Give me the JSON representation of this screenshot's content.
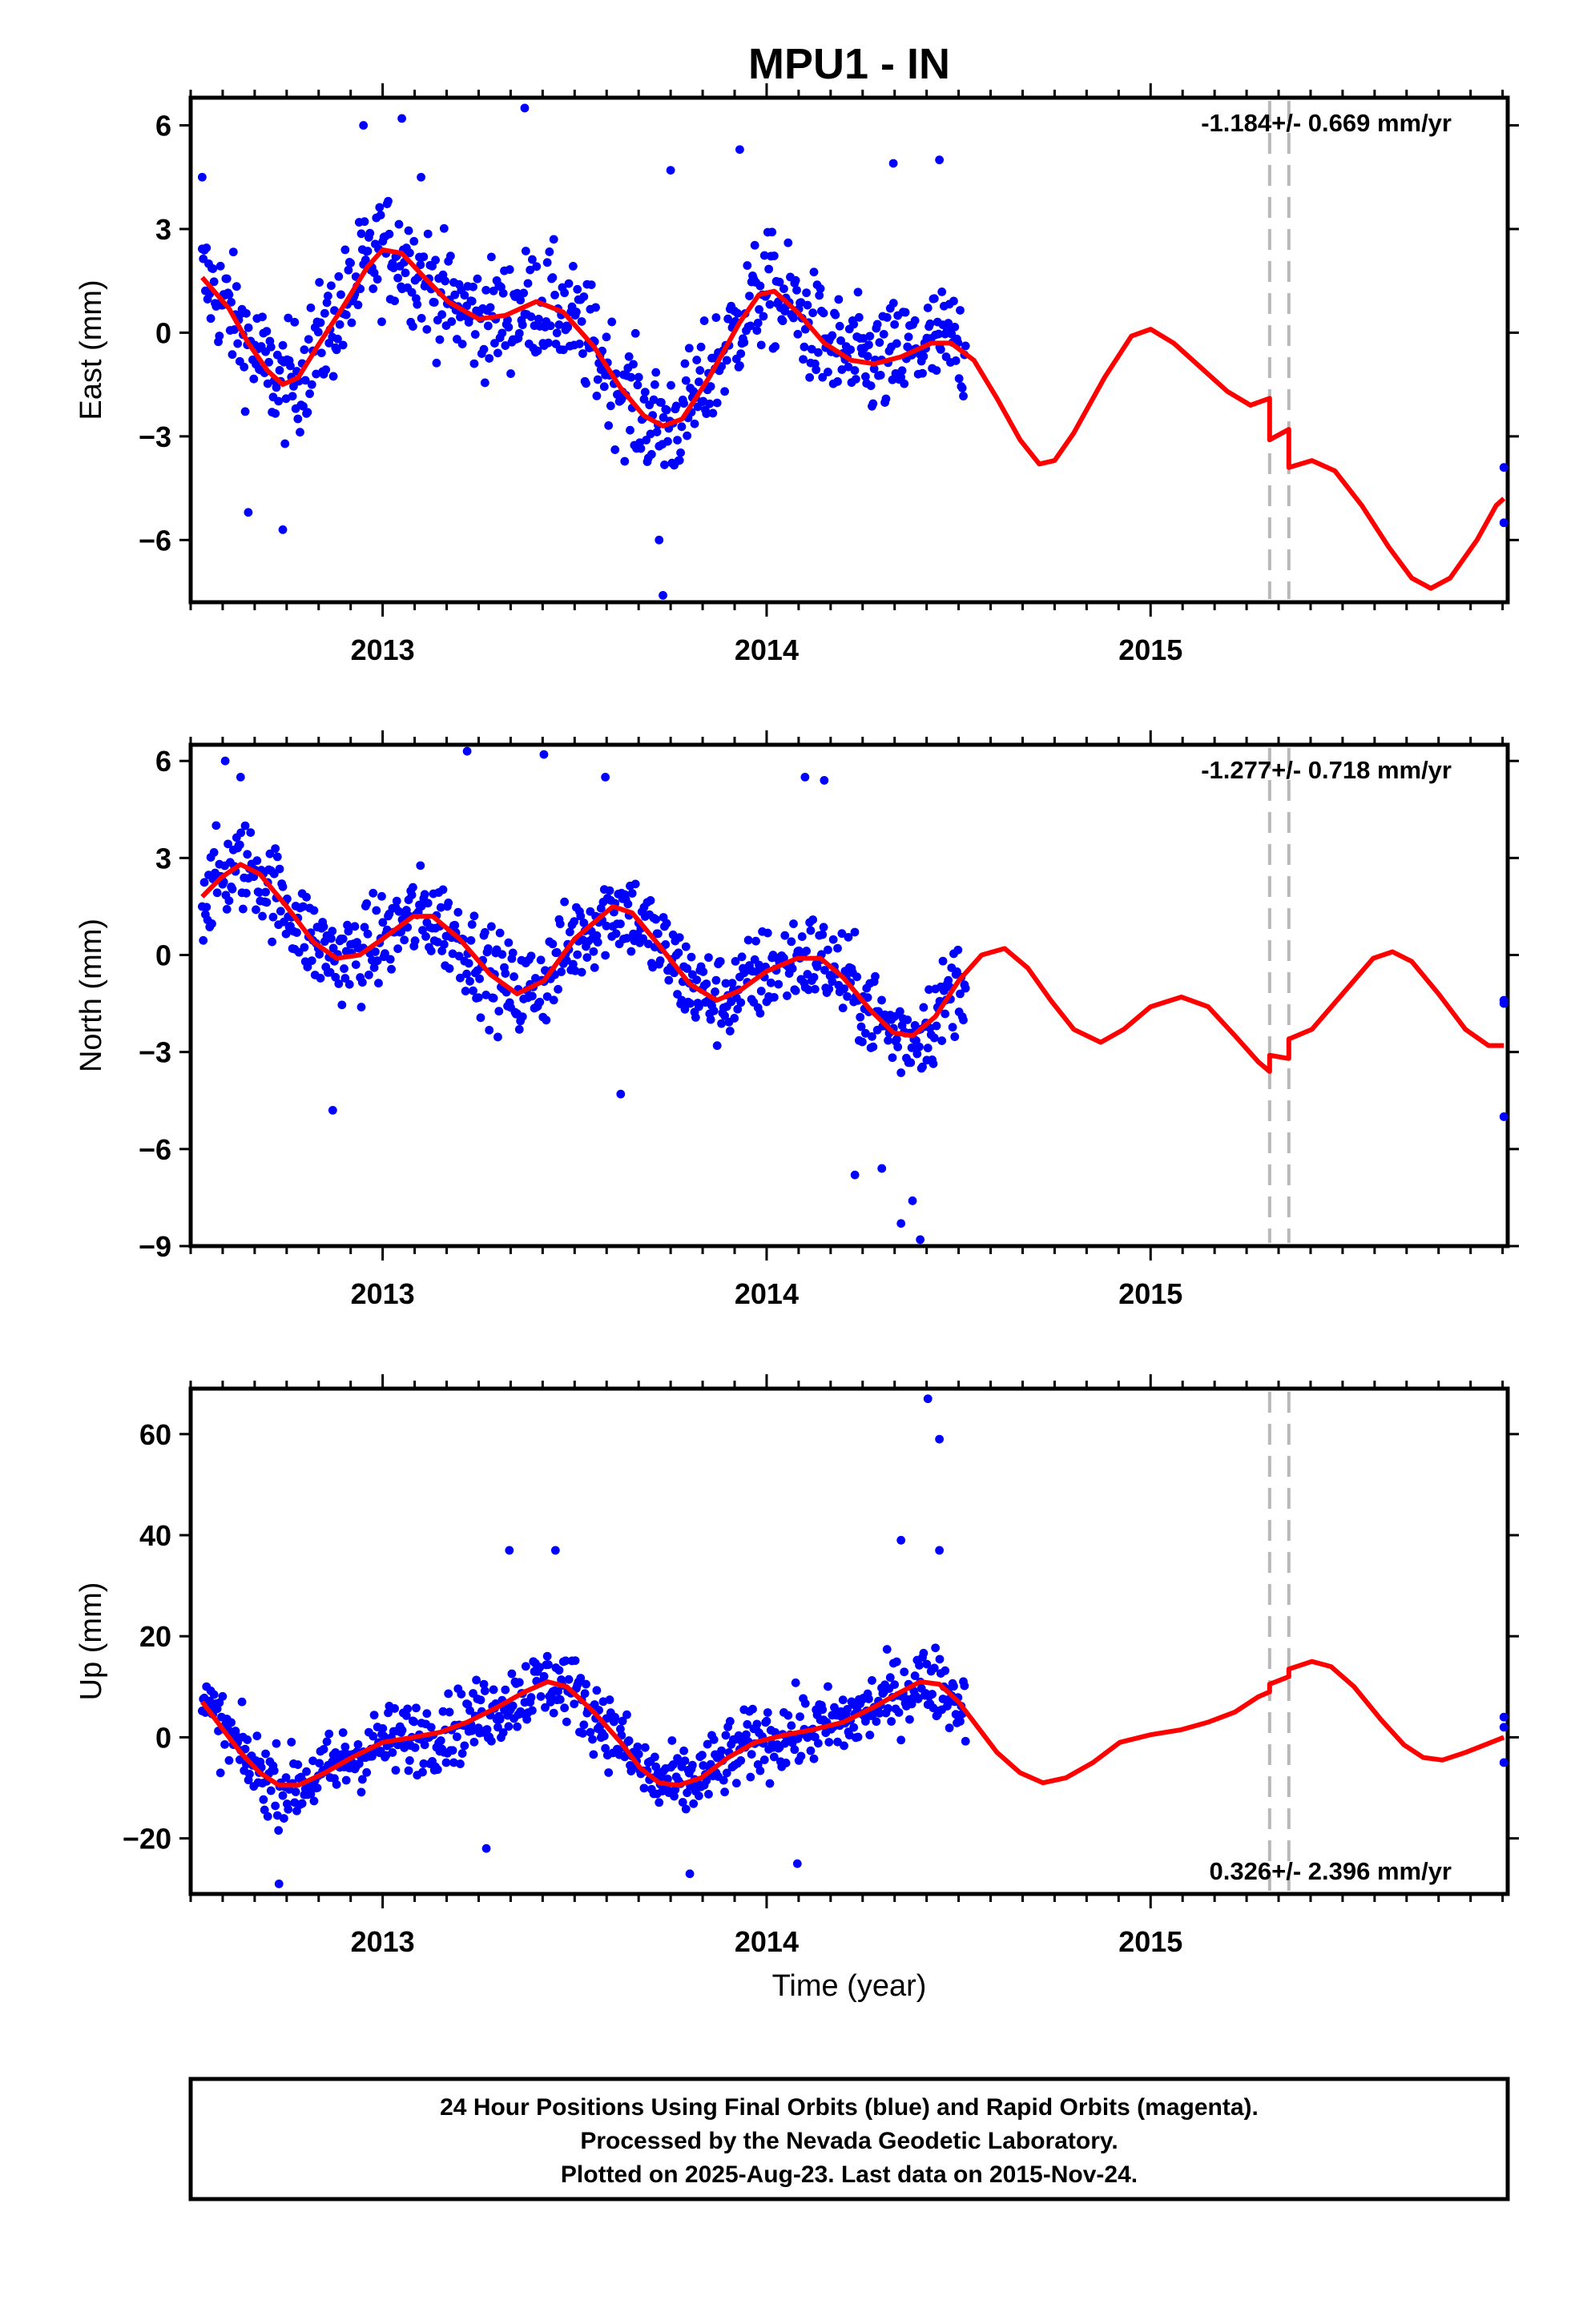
{
  "chart_data": {
    "title": "MPU1 - IN",
    "xlabel": "Time (year)",
    "type": "scatter",
    "xlim": [
      2012.5,
      2015.93
    ],
    "x_ticks": [
      2013,
      2014,
      2015
    ],
    "x_tick_labels": [
      "2013",
      "2014",
      "2015"
    ],
    "equipment_change_epochs": [
      2015.31,
      2015.36
    ],
    "panels": [
      {
        "id": "east",
        "ylabel": "East (mm)",
        "ylim": [
          -7.8,
          6.8
        ],
        "y_ticks": [
          6,
          3,
          0,
          -3,
          -6
        ],
        "y_tick_labels": [
          "6",
          "3",
          "0",
          "−3",
          "−6"
        ],
        "rate_label": "-1.184+/- 0.669 mm/yr",
        "rate_position": "top-right",
        "fit": [
          [
            2012.53,
            1.6
          ],
          [
            2012.6,
            0.7
          ],
          [
            2012.65,
            -0.3
          ],
          [
            2012.7,
            -1.1
          ],
          [
            2012.74,
            -1.5
          ],
          [
            2012.78,
            -1.3
          ],
          [
            2012.83,
            -0.4
          ],
          [
            2012.9,
            0.8
          ],
          [
            2012.96,
            1.9
          ],
          [
            2013.0,
            2.4
          ],
          [
            2013.05,
            2.3
          ],
          [
            2013.1,
            1.7
          ],
          [
            2013.17,
            0.9
          ],
          [
            2013.25,
            0.4
          ],
          [
            2013.32,
            0.5
          ],
          [
            2013.4,
            0.9
          ],
          [
            2013.47,
            0.6
          ],
          [
            2013.55,
            -0.4
          ],
          [
            2013.62,
            -1.6
          ],
          [
            2013.68,
            -2.4
          ],
          [
            2013.73,
            -2.7
          ],
          [
            2013.78,
            -2.5
          ],
          [
            2013.85,
            -1.3
          ],
          [
            2013.93,
            0.3
          ],
          [
            2013.98,
            1.1
          ],
          [
            2014.02,
            1.2
          ],
          [
            2014.08,
            0.6
          ],
          [
            2014.15,
            -0.3
          ],
          [
            2014.22,
            -0.8
          ],
          [
            2014.28,
            -0.9
          ],
          [
            2014.35,
            -0.7
          ],
          [
            2014.43,
            -0.3
          ],
          [
            2014.48,
            -0.3
          ],
          [
            2014.54,
            -0.8
          ],
          [
            2014.6,
            -1.9
          ],
          [
            2014.66,
            -3.1
          ],
          [
            2014.71,
            -3.8
          ],
          [
            2014.75,
            -3.7
          ],
          [
            2014.8,
            -2.9
          ],
          [
            2014.88,
            -1.3
          ],
          [
            2014.95,
            -0.1
          ],
          [
            2015.0,
            0.1
          ],
          [
            2015.06,
            -0.3
          ],
          [
            2015.13,
            -1.0
          ],
          [
            2015.2,
            -1.7
          ],
          [
            2015.26,
            -2.1
          ],
          [
            2015.31,
            -1.9
          ],
          [
            2015.31,
            -3.1
          ],
          [
            2015.36,
            -2.8
          ],
          [
            2015.36,
            -3.9
          ],
          [
            2015.42,
            -3.7
          ],
          [
            2015.48,
            -4.0
          ],
          [
            2015.55,
            -5.0
          ],
          [
            2015.62,
            -6.2
          ],
          [
            2015.68,
            -7.1
          ],
          [
            2015.73,
            -7.4
          ],
          [
            2015.78,
            -7.1
          ],
          [
            2015.85,
            -6.0
          ],
          [
            2015.9,
            -5.0
          ],
          [
            2015.92,
            -4.8
          ]
        ],
        "points_model": {
          "a1": 1.35,
          "p1": -1.4,
          "a2": 0.55,
          "p2": 0.3,
          "rate": -1.184,
          "offset": 0.55,
          "noise": 1.5
        },
        "outliers": [
          [
            2012.95,
            6.0
          ],
          [
            2013.05,
            6.2
          ],
          [
            2013.1,
            4.5
          ],
          [
            2013.37,
            6.5
          ],
          [
            2013.75,
            4.7
          ],
          [
            2013.72,
            -6.0
          ],
          [
            2013.73,
            -7.6
          ],
          [
            2013.93,
            5.3
          ],
          [
            2012.74,
            -5.7
          ],
          [
            2012.65,
            -5.2
          ],
          [
            2012.53,
            4.5
          ],
          [
            2014.33,
            4.9
          ],
          [
            2014.45,
            5.0
          ],
          [
            2015.92,
            -3.9
          ],
          [
            2015.92,
            -5.5
          ]
        ]
      },
      {
        "id": "north",
        "ylabel": "North (mm)",
        "ylim": [
          -9.0,
          6.5
        ],
        "y_ticks": [
          6,
          3,
          0,
          -3,
          -6,
          -9
        ],
        "y_tick_labels": [
          "6",
          "3",
          "0",
          "−3",
          "−6",
          "−9"
        ],
        "rate_label": "-1.277+/- 0.718 mm/yr",
        "rate_position": "top-right",
        "fit": [
          [
            2012.53,
            1.8
          ],
          [
            2012.58,
            2.4
          ],
          [
            2012.63,
            2.8
          ],
          [
            2012.68,
            2.5
          ],
          [
            2012.75,
            1.5
          ],
          [
            2012.82,
            0.4
          ],
          [
            2012.88,
            -0.1
          ],
          [
            2012.94,
            0.0
          ],
          [
            2013.0,
            0.5
          ],
          [
            2013.08,
            1.2
          ],
          [
            2013.13,
            1.2
          ],
          [
            2013.2,
            0.5
          ],
          [
            2013.28,
            -0.6
          ],
          [
            2013.35,
            -1.2
          ],
          [
            2013.42,
            -0.8
          ],
          [
            2013.5,
            0.5
          ],
          [
            2013.6,
            1.5
          ],
          [
            2013.65,
            1.3
          ],
          [
            2013.72,
            0.3
          ],
          [
            2013.8,
            -0.9
          ],
          [
            2013.87,
            -1.4
          ],
          [
            2013.93,
            -1.1
          ],
          [
            2014.0,
            -0.5
          ],
          [
            2014.08,
            -0.1
          ],
          [
            2014.14,
            -0.1
          ],
          [
            2014.2,
            -0.7
          ],
          [
            2014.27,
            -1.7
          ],
          [
            2014.33,
            -2.4
          ],
          [
            2014.38,
            -2.5
          ],
          [
            2014.44,
            -1.9
          ],
          [
            2014.5,
            -0.8
          ],
          [
            2014.56,
            0.0
          ],
          [
            2014.62,
            0.2
          ],
          [
            2014.68,
            -0.4
          ],
          [
            2014.74,
            -1.4
          ],
          [
            2014.8,
            -2.3
          ],
          [
            2014.87,
            -2.7
          ],
          [
            2014.93,
            -2.3
          ],
          [
            2015.0,
            -1.6
          ],
          [
            2015.08,
            -1.3
          ],
          [
            2015.15,
            -1.6
          ],
          [
            2015.22,
            -2.5
          ],
          [
            2015.28,
            -3.3
          ],
          [
            2015.31,
            -3.6
          ],
          [
            2015.31,
            -3.1
          ],
          [
            2015.36,
            -3.2
          ],
          [
            2015.36,
            -2.6
          ],
          [
            2015.42,
            -2.3
          ],
          [
            2015.5,
            -1.2
          ],
          [
            2015.58,
            -0.1
          ],
          [
            2015.63,
            0.1
          ],
          [
            2015.68,
            -0.2
          ],
          [
            2015.75,
            -1.2
          ],
          [
            2015.82,
            -2.3
          ],
          [
            2015.88,
            -2.8
          ],
          [
            2015.92,
            -2.8
          ]
        ],
        "points_model": {
          "a1": 1.1,
          "p1": 1.6,
          "a2": 0.7,
          "p2": 0.8,
          "rate": -1.277,
          "offset": 0.9,
          "noise": 1.3
        },
        "outliers": [
          [
            2012.59,
            6.0
          ],
          [
            2012.63,
            5.5
          ],
          [
            2013.22,
            6.3
          ],
          [
            2013.42,
            6.2
          ],
          [
            2014.1,
            5.5
          ],
          [
            2014.15,
            5.4
          ],
          [
            2013.58,
            5.5
          ],
          [
            2014.35,
            -8.3
          ],
          [
            2014.4,
            -8.9
          ],
          [
            2014.38,
            -7.6
          ],
          [
            2014.23,
            -6.8
          ],
          [
            2014.3,
            -6.6
          ],
          [
            2012.87,
            -4.8
          ],
          [
            2013.62,
            -4.3
          ],
          [
            2015.92,
            -1.4
          ],
          [
            2015.92,
            -1.5
          ],
          [
            2015.92,
            -5.0
          ]
        ]
      },
      {
        "id": "up",
        "ylabel": "Up (mm)",
        "ylim": [
          -31,
          69
        ],
        "y_ticks": [
          60,
          40,
          20,
          0,
          -20
        ],
        "y_tick_labels": [
          "60",
          "40",
          "20",
          "0",
          "−20"
        ],
        "rate_label": "0.326+/- 2.396 mm/yr",
        "rate_position": "bottom-right",
        "fit": [
          [
            2012.53,
            7
          ],
          [
            2012.58,
            2
          ],
          [
            2012.63,
            -3
          ],
          [
            2012.68,
            -7
          ],
          [
            2012.73,
            -9.5
          ],
          [
            2012.78,
            -9.5
          ],
          [
            2012.85,
            -7
          ],
          [
            2012.92,
            -4
          ],
          [
            2013.0,
            -1
          ],
          [
            2013.08,
            0
          ],
          [
            2013.15,
            1
          ],
          [
            2013.22,
            3
          ],
          [
            2013.3,
            6
          ],
          [
            2013.37,
            9
          ],
          [
            2013.43,
            11
          ],
          [
            2013.48,
            10
          ],
          [
            2013.55,
            5
          ],
          [
            2013.62,
            -1
          ],
          [
            2013.67,
            -6
          ],
          [
            2013.72,
            -9
          ],
          [
            2013.77,
            -9.5
          ],
          [
            2013.83,
            -8
          ],
          [
            2013.9,
            -4
          ],
          [
            2013.97,
            -1
          ],
          [
            2014.05,
            0.5
          ],
          [
            2014.12,
            1.5
          ],
          [
            2014.2,
            3
          ],
          [
            2014.28,
            6
          ],
          [
            2014.35,
            9
          ],
          [
            2014.4,
            11
          ],
          [
            2014.45,
            10.5
          ],
          [
            2014.5,
            7
          ],
          [
            2014.55,
            2
          ],
          [
            2014.6,
            -3
          ],
          [
            2014.66,
            -7
          ],
          [
            2014.72,
            -9
          ],
          [
            2014.78,
            -8
          ],
          [
            2014.85,
            -5
          ],
          [
            2014.92,
            -1
          ],
          [
            2015.0,
            0.5
          ],
          [
            2015.08,
            1.5
          ],
          [
            2015.15,
            3
          ],
          [
            2015.22,
            5
          ],
          [
            2015.28,
            8
          ],
          [
            2015.31,
            9
          ],
          [
            2015.31,
            10.5
          ],
          [
            2015.36,
            12
          ],
          [
            2015.36,
            13.5
          ],
          [
            2015.42,
            15
          ],
          [
            2015.47,
            14
          ],
          [
            2015.53,
            10
          ],
          [
            2015.6,
            3.5
          ],
          [
            2015.66,
            -1.5
          ],
          [
            2015.71,
            -4
          ],
          [
            2015.76,
            -4.5
          ],
          [
            2015.82,
            -3
          ],
          [
            2015.87,
            -1.5
          ],
          [
            2015.92,
            0
          ]
        ],
        "points_model": {
          "a1": 7.0,
          "p1": -0.9,
          "a2": 4.5,
          "p2": 0.6,
          "rate": 0.326,
          "offset": 1.0,
          "noise": 6.5
        },
        "outliers": [
          [
            2014.42,
            67
          ],
          [
            2014.45,
            59
          ],
          [
            2014.45,
            37
          ],
          [
            2014.35,
            39
          ],
          [
            2013.33,
            37
          ],
          [
            2013.45,
            37
          ],
          [
            2012.73,
            -29
          ],
          [
            2013.8,
            -27
          ],
          [
            2014.08,
            -25
          ],
          [
            2013.27,
            -22
          ],
          [
            2015.92,
            4
          ],
          [
            2015.92,
            2
          ],
          [
            2015.92,
            -5
          ]
        ]
      }
    ]
  },
  "footer": {
    "line1": "24 Hour Positions Using Final Orbits (blue) and Rapid Orbits (magenta).",
    "line2": "Processed by the Nevada Geodetic Laboratory.",
    "line3": "Plotted on 2025-Aug-23. Last data on 2015-Nov-24."
  },
  "colors": {
    "points": "#0000ff",
    "fit": "#ff0000",
    "break_lines": "#b8b8b8",
    "frame": "#000000"
  }
}
